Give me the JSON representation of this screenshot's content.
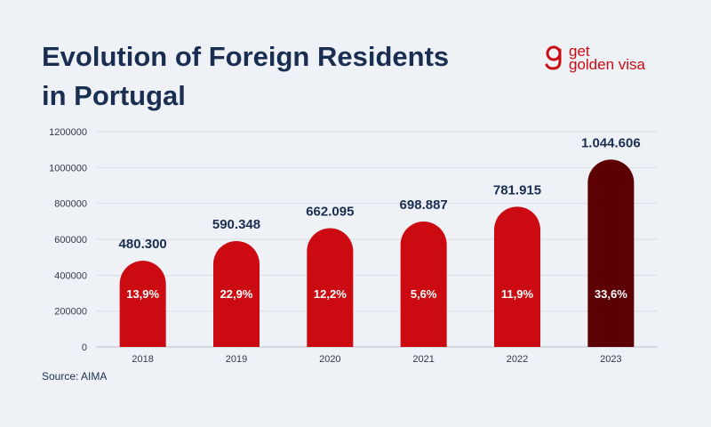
{
  "header": {
    "title_line1": "Evolution of Foreign Residents",
    "title_line2": "in Portugal"
  },
  "logo": {
    "line1": "get",
    "line2": "golden visa"
  },
  "footer": {
    "source": "Source: AIMA"
  },
  "colors": {
    "bar": "#cc0a12",
    "bar_highlight": "#5c0004",
    "title": "#1a2e52",
    "background": "#eef1f5"
  },
  "chart_data": {
    "type": "bar",
    "title": "Evolution of Foreign Residents in Portugal",
    "xlabel": "",
    "ylabel": "",
    "ylim": [
      0,
      1200000
    ],
    "yticks": [
      0,
      200000,
      400000,
      600000,
      800000,
      1000000,
      1200000
    ],
    "ytick_labels": [
      "0",
      "200000",
      "400000",
      "600000",
      "800000",
      "1000000",
      "1200000"
    ],
    "grid": true,
    "categories": [
      "2018",
      "2019",
      "2020",
      "2021",
      "2022",
      "2023"
    ],
    "values": [
      480300,
      590348,
      662095,
      698887,
      781915,
      1044606
    ],
    "value_labels": [
      "480.300",
      "590.348",
      "662.095",
      "698.887",
      "781.915",
      "1.044.606"
    ],
    "growth_labels": [
      "13,9%",
      "22,9%",
      "12,2%",
      "5,6%",
      "11,9%",
      "33,6%"
    ],
    "highlight_index": 5
  }
}
